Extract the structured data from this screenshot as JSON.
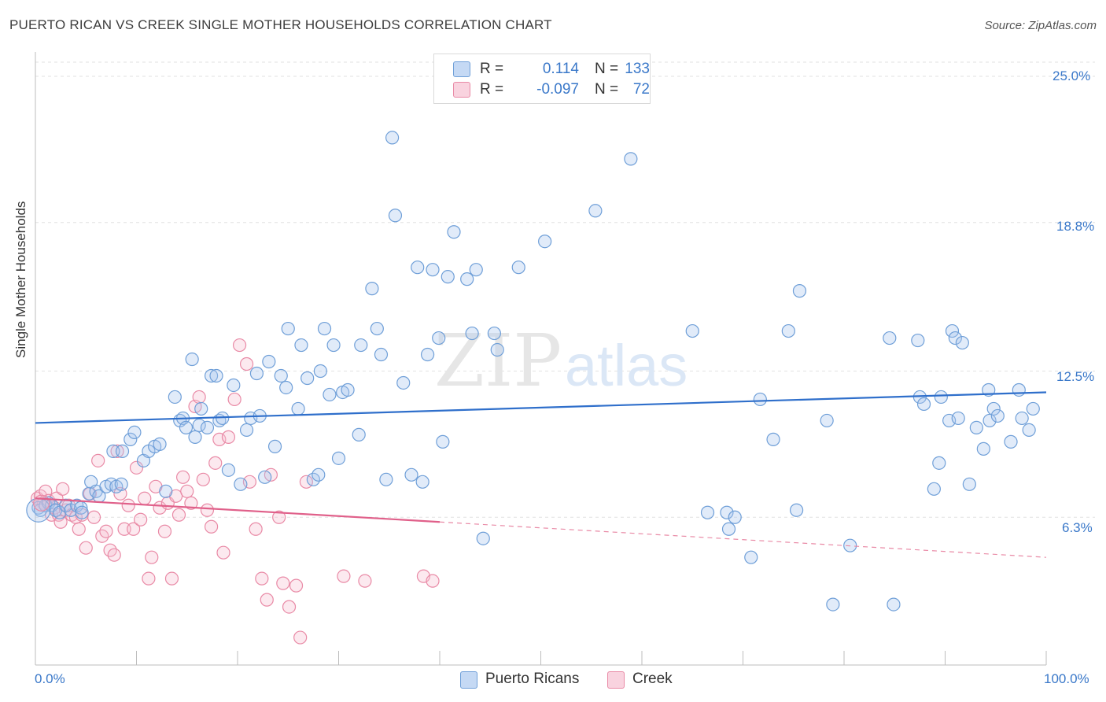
{
  "title": "PUERTO RICAN VS CREEK SINGLE MOTHER HOUSEHOLDS CORRELATION CHART",
  "source": "Source: ZipAtlas.com",
  "watermark": {
    "zip": "ZIP",
    "atlas": "atlas"
  },
  "legend": {
    "r_label": "R =",
    "n_label": "N =",
    "rows": [
      {
        "r": "0.114",
        "n": "133",
        "color": "#a9c7ee",
        "border": "#6f9fd8"
      },
      {
        "r": "-0.097",
        "n": "72",
        "color": "#f6bfd0",
        "border": "#e98aa6"
      }
    ]
  },
  "chart_data": {
    "type": "scatter",
    "title": "PUERTO RICAN VS CREEK SINGLE MOTHER HOUSEHOLDS CORRELATION CHART",
    "xlabel": "",
    "ylabel": "Single Mother Households",
    "xlim": [
      0,
      100
    ],
    "ylim": [
      0,
      25
    ],
    "x_tick_labels": [
      "0.0%",
      "100.0%"
    ],
    "y_ticks": [
      6.3,
      12.5,
      18.8,
      25.0
    ],
    "y_tick_labels": [
      "6.3%",
      "12.5%",
      "18.8%",
      "25.0%"
    ],
    "grid": true,
    "legend_position": "top-center",
    "series": [
      {
        "name": "Puerto Ricans",
        "color": "#6f9fd8",
        "fill": "#a9c7ee",
        "trend": {
          "x": [
            0,
            100
          ],
          "y": [
            10.3,
            11.6
          ],
          "color": "#2f6fcb"
        },
        "points": [
          [
            0.3,
            6.7
          ],
          [
            0.5,
            6.6
          ],
          [
            1.0,
            6.8
          ],
          [
            1.3,
            6.9
          ],
          [
            1.6,
            6.8
          ],
          [
            2.0,
            6.6
          ],
          [
            2.4,
            6.5
          ],
          [
            3.0,
            6.8
          ],
          [
            3.5,
            6.6
          ],
          [
            4.1,
            6.8
          ],
          [
            4.5,
            6.7
          ],
          [
            4.6,
            6.5
          ],
          [
            5.3,
            7.3
          ],
          [
            5.5,
            7.8
          ],
          [
            6.0,
            7.4
          ],
          [
            6.3,
            7.2
          ],
          [
            7.0,
            7.6
          ],
          [
            7.5,
            7.7
          ],
          [
            8.0,
            7.6
          ],
          [
            8.5,
            7.7
          ],
          [
            7.7,
            9.1
          ],
          [
            8.6,
            9.1
          ],
          [
            9.4,
            9.6
          ],
          [
            9.8,
            9.9
          ],
          [
            10.7,
            8.7
          ],
          [
            11.2,
            9.1
          ],
          [
            11.8,
            9.3
          ],
          [
            12.3,
            9.4
          ],
          [
            12.9,
            7.4
          ],
          [
            13.8,
            11.4
          ],
          [
            14.3,
            10.4
          ],
          [
            14.6,
            10.5
          ],
          [
            14.9,
            10.1
          ],
          [
            15.5,
            13.0
          ],
          [
            15.8,
            9.7
          ],
          [
            16.2,
            10.2
          ],
          [
            16.4,
            10.9
          ],
          [
            17.0,
            10.1
          ],
          [
            17.4,
            12.3
          ],
          [
            17.9,
            12.3
          ],
          [
            18.2,
            10.4
          ],
          [
            18.5,
            10.5
          ],
          [
            19.1,
            8.3
          ],
          [
            19.6,
            11.9
          ],
          [
            20.3,
            7.7
          ],
          [
            20.9,
            10.0
          ],
          [
            21.3,
            10.5
          ],
          [
            21.9,
            12.4
          ],
          [
            22.2,
            10.6
          ],
          [
            22.7,
            8.0
          ],
          [
            23.1,
            12.9
          ],
          [
            23.7,
            9.3
          ],
          [
            24.3,
            12.3
          ],
          [
            24.8,
            11.8
          ],
          [
            25.0,
            14.3
          ],
          [
            26.0,
            10.9
          ],
          [
            26.3,
            13.6
          ],
          [
            26.9,
            12.2
          ],
          [
            27.5,
            7.9
          ],
          [
            28.0,
            8.1
          ],
          [
            28.2,
            12.5
          ],
          [
            28.6,
            14.3
          ],
          [
            29.1,
            11.5
          ],
          [
            29.5,
            13.6
          ],
          [
            30.0,
            8.8
          ],
          [
            30.4,
            11.6
          ],
          [
            30.9,
            11.7
          ],
          [
            32.0,
            9.8
          ],
          [
            32.2,
            13.6
          ],
          [
            33.3,
            16.0
          ],
          [
            33.8,
            14.3
          ],
          [
            34.2,
            13.2
          ],
          [
            34.7,
            7.9
          ],
          [
            35.3,
            22.4
          ],
          [
            35.6,
            19.1
          ],
          [
            36.4,
            12.0
          ],
          [
            37.2,
            8.1
          ],
          [
            37.8,
            16.9
          ],
          [
            38.3,
            7.8
          ],
          [
            38.8,
            13.2
          ],
          [
            39.3,
            16.8
          ],
          [
            39.9,
            13.9
          ],
          [
            40.3,
            9.5
          ],
          [
            40.8,
            16.5
          ],
          [
            41.4,
            18.4
          ],
          [
            42.7,
            16.4
          ],
          [
            43.2,
            14.1
          ],
          [
            43.6,
            16.8
          ],
          [
            44.3,
            5.4
          ],
          [
            45.4,
            14.1
          ],
          [
            45.7,
            13.4
          ],
          [
            47.8,
            16.9
          ],
          [
            50.4,
            18.0
          ],
          [
            55.4,
            19.3
          ],
          [
            58.9,
            21.5
          ],
          [
            65.0,
            14.2
          ],
          [
            66.5,
            6.5
          ],
          [
            68.4,
            6.5
          ],
          [
            68.6,
            5.8
          ],
          [
            69.2,
            6.3
          ],
          [
            70.8,
            4.6
          ],
          [
            71.7,
            11.3
          ],
          [
            73.0,
            9.6
          ],
          [
            74.5,
            14.2
          ],
          [
            75.3,
            6.6
          ],
          [
            75.6,
            15.9
          ],
          [
            78.3,
            10.4
          ],
          [
            78.9,
            2.6
          ],
          [
            80.6,
            5.1
          ],
          [
            84.5,
            13.9
          ],
          [
            84.9,
            2.6
          ],
          [
            87.3,
            13.8
          ],
          [
            87.5,
            11.4
          ],
          [
            87.9,
            11.1
          ],
          [
            88.9,
            7.5
          ],
          [
            89.4,
            8.6
          ],
          [
            89.6,
            11.4
          ],
          [
            90.4,
            10.4
          ],
          [
            90.7,
            14.2
          ],
          [
            91.0,
            13.9
          ],
          [
            91.3,
            10.5
          ],
          [
            91.7,
            13.7
          ],
          [
            92.4,
            7.7
          ],
          [
            93.1,
            10.1
          ],
          [
            93.8,
            9.2
          ],
          [
            94.3,
            11.7
          ],
          [
            94.4,
            10.4
          ],
          [
            94.8,
            10.9
          ],
          [
            95.2,
            10.6
          ],
          [
            96.5,
            9.5
          ],
          [
            97.3,
            11.7
          ],
          [
            97.6,
            10.5
          ],
          [
            98.3,
            10.0
          ],
          [
            98.7,
            10.9
          ]
        ]
      },
      {
        "name": "Creek",
        "color": "#e98aa6",
        "fill": "#f6bfd0",
        "trend": {
          "x": [
            0,
            40
          ],
          "y": [
            7.1,
            6.1
          ],
          "color": "#e0608a"
        },
        "trend_dashed": {
          "x": [
            40,
            100
          ],
          "y": [
            6.1,
            4.6
          ]
        },
        "points": [
          [
            0.2,
            7.1
          ],
          [
            0.5,
            7.2
          ],
          [
            0.8,
            6.9
          ],
          [
            1.0,
            7.4
          ],
          [
            1.3,
            7.0
          ],
          [
            1.6,
            6.4
          ],
          [
            1.9,
            6.7
          ],
          [
            2.1,
            7.1
          ],
          [
            2.3,
            6.4
          ],
          [
            2.5,
            6.1
          ],
          [
            2.7,
            7.5
          ],
          [
            3.0,
            6.6
          ],
          [
            3.3,
            6.8
          ],
          [
            3.6,
            6.4
          ],
          [
            4.0,
            6.3
          ],
          [
            4.3,
            5.8
          ],
          [
            4.6,
            6.4
          ],
          [
            5.0,
            5.0
          ],
          [
            5.4,
            7.3
          ],
          [
            5.8,
            6.3
          ],
          [
            6.2,
            8.7
          ],
          [
            6.6,
            5.5
          ],
          [
            7.0,
            5.7
          ],
          [
            7.4,
            4.9
          ],
          [
            7.8,
            4.7
          ],
          [
            8.1,
            9.1
          ],
          [
            8.4,
            7.3
          ],
          [
            8.8,
            5.8
          ],
          [
            9.2,
            6.8
          ],
          [
            9.7,
            5.8
          ],
          [
            10.0,
            8.4
          ],
          [
            10.4,
            6.2
          ],
          [
            10.8,
            7.1
          ],
          [
            11.2,
            3.7
          ],
          [
            11.5,
            4.6
          ],
          [
            11.9,
            7.6
          ],
          [
            12.3,
            6.7
          ],
          [
            12.8,
            5.7
          ],
          [
            13.1,
            6.9
          ],
          [
            13.5,
            3.7
          ],
          [
            13.9,
            7.2
          ],
          [
            14.2,
            6.4
          ],
          [
            14.6,
            8.0
          ],
          [
            15.0,
            7.4
          ],
          [
            15.4,
            6.9
          ],
          [
            15.8,
            11.0
          ],
          [
            16.2,
            11.4
          ],
          [
            16.6,
            7.9
          ],
          [
            17.0,
            6.6
          ],
          [
            17.4,
            5.9
          ],
          [
            17.8,
            8.6
          ],
          [
            18.2,
            9.6
          ],
          [
            18.6,
            4.8
          ],
          [
            19.1,
            9.7
          ],
          [
            19.7,
            11.3
          ],
          [
            20.2,
            13.6
          ],
          [
            20.9,
            12.8
          ],
          [
            21.2,
            7.8
          ],
          [
            21.8,
            5.8
          ],
          [
            22.4,
            3.7
          ],
          [
            22.9,
            2.8
          ],
          [
            23.3,
            8.1
          ],
          [
            24.1,
            6.3
          ],
          [
            24.5,
            3.5
          ],
          [
            25.1,
            2.5
          ],
          [
            25.8,
            3.4
          ],
          [
            26.2,
            1.2
          ],
          [
            26.8,
            7.8
          ],
          [
            30.5,
            3.8
          ],
          [
            32.6,
            3.6
          ],
          [
            38.4,
            3.8
          ],
          [
            39.3,
            3.6
          ]
        ]
      }
    ]
  },
  "bottom_legend": [
    {
      "label": "Puerto Ricans",
      "color": "#a9c7ee",
      "border": "#6f9fd8"
    },
    {
      "label": "Creek",
      "color": "#f6bfd0",
      "border": "#e98aa6"
    }
  ]
}
